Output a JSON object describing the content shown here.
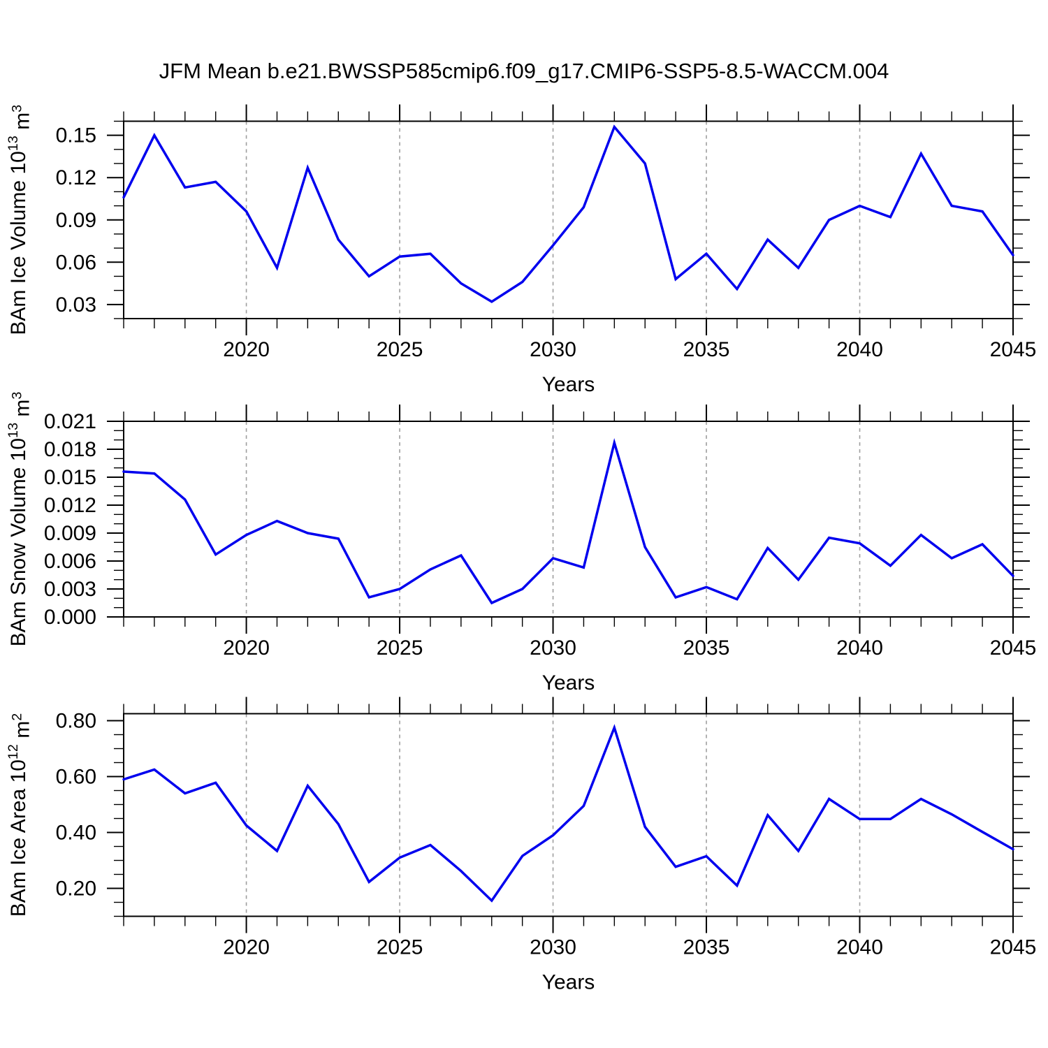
{
  "title": "JFM Mean b.e21.BWSSP585cmip6.f09_g17.CMIP6-SSP5-8.5-WACCM.004",
  "colors": {
    "line": "#0000ee",
    "grid": "#9e9e9e",
    "axis": "#000000",
    "background": "#ffffff"
  },
  "xlabel": "Years",
  "years": [
    2016,
    2017,
    2018,
    2019,
    2020,
    2021,
    2022,
    2023,
    2024,
    2025,
    2026,
    2027,
    2028,
    2029,
    2030,
    2031,
    2032,
    2033,
    2034,
    2035,
    2036,
    2037,
    2038,
    2039,
    2040,
    2041,
    2042,
    2043,
    2044,
    2045
  ],
  "x_major_ticks": [
    2020,
    2025,
    2030,
    2035,
    2040,
    2045
  ],
  "grid_years": [
    2020,
    2025,
    2030,
    2035,
    2040
  ],
  "chart_data": [
    {
      "type": "line",
      "name": "ice-volume",
      "ylabel": "BAm Ice Volume 10^13 m^3",
      "xlabel": "Years",
      "ylim": [
        0.02,
        0.16
      ],
      "grid": "vertical-dashed",
      "legend": "none",
      "y_minor_step": 0.01,
      "y_major_ticks": [
        {
          "v": 0.03,
          "label": "0.03"
        },
        {
          "v": 0.06,
          "label": "0.06"
        },
        {
          "v": 0.09,
          "label": "0.09"
        },
        {
          "v": 0.12,
          "label": "0.12"
        },
        {
          "v": 0.15,
          "label": "0.15"
        }
      ],
      "values": [
        0.106,
        0.15,
        0.113,
        0.117,
        0.096,
        0.056,
        0.127,
        0.076,
        0.05,
        0.064,
        0.066,
        0.045,
        0.032,
        0.046,
        0.072,
        0.099,
        0.156,
        0.13,
        0.048,
        0.066,
        0.041,
        0.076,
        0.056,
        0.09,
        0.1,
        0.092,
        0.137,
        0.1,
        0.096,
        0.065
      ]
    },
    {
      "type": "line",
      "name": "snow-volume",
      "ylabel": "BAm Snow Volume 10^13 m^3",
      "xlabel": "Years",
      "ylim": [
        0.0,
        0.021
      ],
      "grid": "vertical-dashed",
      "legend": "none",
      "y_minor_step": 0.001,
      "y_major_ticks": [
        {
          "v": 0.0,
          "label": "0.000"
        },
        {
          "v": 0.003,
          "label": "0.003"
        },
        {
          "v": 0.006,
          "label": "0.006"
        },
        {
          "v": 0.009,
          "label": "0.009"
        },
        {
          "v": 0.012,
          "label": "0.012"
        },
        {
          "v": 0.015,
          "label": "0.015"
        },
        {
          "v": 0.018,
          "label": "0.018"
        },
        {
          "v": 0.021,
          "label": "0.021"
        }
      ],
      "values": [
        0.0156,
        0.0154,
        0.0126,
        0.0067,
        0.0088,
        0.0103,
        0.009,
        0.0084,
        0.0021,
        0.003,
        0.0051,
        0.0066,
        0.0015,
        0.003,
        0.0063,
        0.0053,
        0.0187,
        0.0075,
        0.0021,
        0.0032,
        0.0019,
        0.0074,
        0.004,
        0.0085,
        0.0079,
        0.0055,
        0.0088,
        0.0063,
        0.0078,
        0.0044
      ]
    },
    {
      "type": "line",
      "name": "ice-area",
      "ylabel": "BAm Ice Area 10^12 m^2",
      "xlabel": "Years",
      "ylim": [
        0.1,
        0.825
      ],
      "grid": "vertical-dashed",
      "legend": "none",
      "y_minor_step": 0.05,
      "y_major_ticks": [
        {
          "v": 0.2,
          "label": "0.20"
        },
        {
          "v": 0.4,
          "label": "0.40"
        },
        {
          "v": 0.6,
          "label": "0.60"
        },
        {
          "v": 0.8,
          "label": "0.80"
        }
      ],
      "values": [
        0.59,
        0.625,
        0.54,
        0.578,
        0.425,
        0.334,
        0.567,
        0.43,
        0.223,
        0.31,
        0.355,
        0.262,
        0.156,
        0.316,
        0.39,
        0.495,
        0.775,
        0.42,
        0.277,
        0.315,
        0.21,
        0.462,
        0.334,
        0.52,
        0.448,
        0.448,
        0.52,
        0.465,
        0.402,
        0.34
      ]
    }
  ]
}
